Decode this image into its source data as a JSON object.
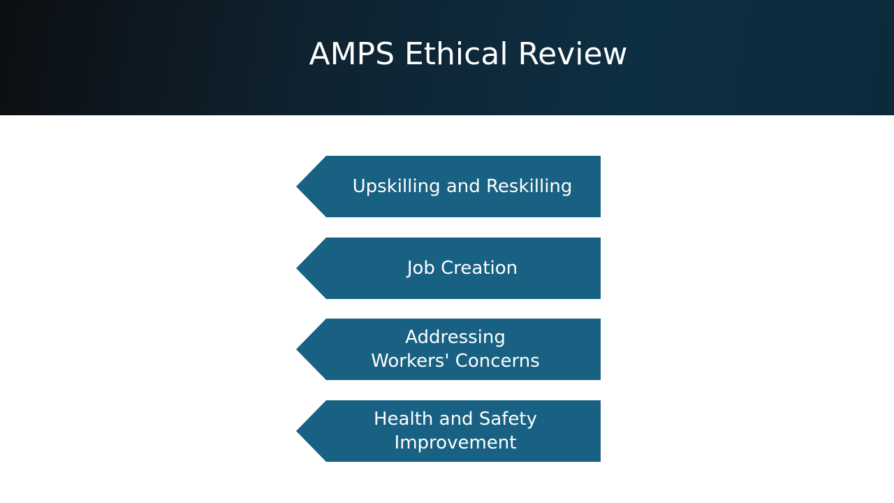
{
  "slide": {
    "title": "AMPS Ethical Review"
  },
  "steps": [
    {
      "label": "Upskilling and Reskilling"
    },
    {
      "label": "Job Creation"
    },
    {
      "label": "Addressing Workers' Concerns"
    },
    {
      "label": "Health and Safety Improvement"
    }
  ],
  "colors": {
    "header_dark": "#0c0f12",
    "header_teal": "#0d2f42",
    "step_fill": "#196182",
    "text": "#ffffff"
  }
}
